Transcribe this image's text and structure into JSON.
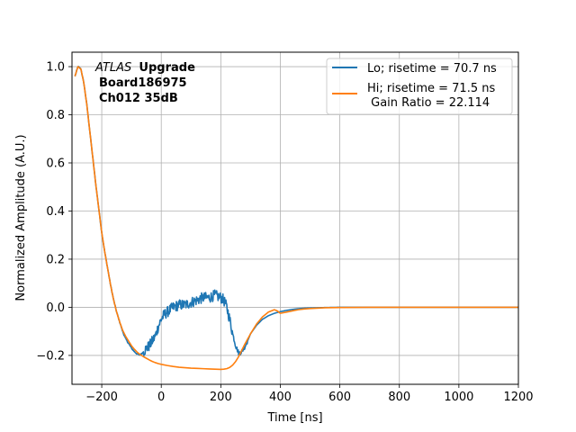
{
  "chart_data": {
    "type": "line",
    "xlabel": "Time [ns]",
    "ylabel": "Normalized Amplitude (A.U.)",
    "xlim": [
      -300,
      1200
    ],
    "ylim": [
      -0.32,
      1.06
    ],
    "xticks": [
      -200,
      0,
      200,
      400,
      600,
      800,
      1000,
      1200
    ],
    "xtick_labels": [
      "−200",
      "0",
      "200",
      "400",
      "600",
      "800",
      "1000",
      "1200"
    ],
    "yticks": [
      -0.2,
      0.0,
      0.2,
      0.4,
      0.6,
      0.8,
      1.0
    ],
    "ytick_labels": [
      "−0.2",
      "0.0",
      "0.2",
      "0.4",
      "0.6",
      "0.8",
      "1.0"
    ],
    "grid": true,
    "legend_position": "top-right",
    "annotation": {
      "atlas": "ATLAS",
      "upgrade": "Upgrade",
      "board": "Board186975",
      "channel": "Ch012 35dB"
    },
    "series": [
      {
        "name": "Lo; risetime = 70.7 ns",
        "color": "#1f77b4",
        "noisy": true,
        "x": [
          -290,
          -280,
          -270,
          -260,
          -250,
          -240,
          -230,
          -220,
          -210,
          -200,
          -190,
          -180,
          -170,
          -160,
          -150,
          -140,
          -130,
          -120,
          -110,
          -100,
          -90,
          -80,
          -70,
          -60,
          -50,
          -40,
          -30,
          -20,
          -10,
          0,
          10,
          20,
          30,
          40,
          60,
          80,
          100,
          120,
          140,
          160,
          180,
          200,
          210,
          220,
          230,
          240,
          250,
          260,
          270,
          280,
          290,
          300,
          320,
          340,
          360,
          380,
          400,
          420,
          440,
          460,
          480,
          500,
          550,
          600,
          700,
          800,
          900,
          1000,
          1100,
          1200
        ],
        "y": [
          0.96,
          1.0,
          0.99,
          0.93,
          0.84,
          0.73,
          0.62,
          0.51,
          0.41,
          0.31,
          0.23,
          0.16,
          0.09,
          0.03,
          -0.02,
          -0.06,
          -0.1,
          -0.13,
          -0.15,
          -0.17,
          -0.185,
          -0.195,
          -0.198,
          -0.185,
          -0.17,
          -0.16,
          -0.14,
          -0.12,
          -0.08,
          -0.05,
          -0.03,
          -0.02,
          -0.01,
          0.0,
          0.01,
          0.01,
          0.02,
          0.03,
          0.04,
          0.04,
          0.05,
          0.04,
          0.03,
          0.0,
          -0.05,
          -0.11,
          -0.16,
          -0.19,
          -0.185,
          -0.165,
          -0.14,
          -0.11,
          -0.075,
          -0.05,
          -0.035,
          -0.025,
          -0.018,
          -0.013,
          -0.009,
          -0.006,
          -0.004,
          -0.003,
          -0.001,
          0.0,
          0.0,
          0.0,
          0.0,
          0.0,
          0.0,
          0.0
        ]
      },
      {
        "name": "Hi; risetime = 71.5 ns",
        "extra_label": " Gain Ratio = 22.114",
        "color": "#ff7f0e",
        "noisy": false,
        "x": [
          -290,
          -280,
          -270,
          -260,
          -250,
          -240,
          -230,
          -220,
          -210,
          -200,
          -190,
          -180,
          -170,
          -160,
          -150,
          -140,
          -130,
          -120,
          -110,
          -100,
          -90,
          -80,
          -70,
          -60,
          -50,
          -40,
          -30,
          -20,
          -10,
          0,
          20,
          40,
          60,
          80,
          100,
          120,
          140,
          160,
          180,
          200,
          210,
          220,
          230,
          240,
          250,
          260,
          270,
          280,
          300,
          320,
          340,
          360,
          380,
          390,
          400,
          420,
          440,
          460,
          480,
          500,
          550,
          600,
          700,
          800,
          900,
          1000,
          1100,
          1200
        ],
        "y": [
          0.96,
          1.0,
          0.99,
          0.93,
          0.84,
          0.73,
          0.62,
          0.51,
          0.41,
          0.31,
          0.23,
          0.16,
          0.09,
          0.03,
          -0.02,
          -0.06,
          -0.095,
          -0.12,
          -0.14,
          -0.16,
          -0.175,
          -0.188,
          -0.197,
          -0.205,
          -0.212,
          -0.219,
          -0.225,
          -0.23,
          -0.234,
          -0.237,
          -0.242,
          -0.246,
          -0.249,
          -0.251,
          -0.253,
          -0.254,
          -0.255,
          -0.256,
          -0.257,
          -0.258,
          -0.257,
          -0.255,
          -0.25,
          -0.24,
          -0.225,
          -0.205,
          -0.18,
          -0.155,
          -0.11,
          -0.07,
          -0.04,
          -0.02,
          -0.01,
          -0.015,
          -0.025,
          -0.02,
          -0.015,
          -0.01,
          -0.007,
          -0.005,
          -0.002,
          -0.001,
          0.0,
          0.0,
          0.0,
          0.0,
          0.0,
          0.0
        ]
      }
    ]
  }
}
